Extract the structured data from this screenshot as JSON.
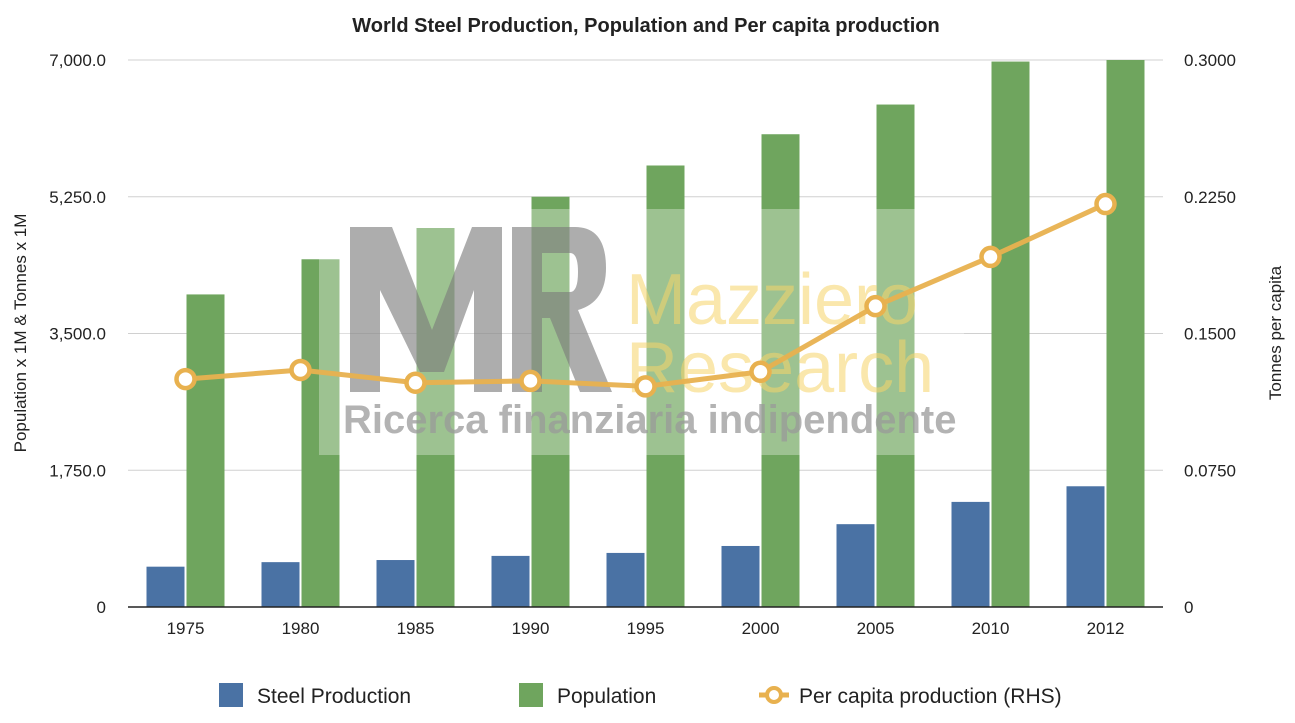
{
  "chart_data": {
    "type": "bar",
    "title": "World Steel Production, Population and Per capita production",
    "categories": [
      "1975",
      "1980",
      "1985",
      "1990",
      "1995",
      "2000",
      "2005",
      "2010",
      "2012"
    ],
    "series": [
      {
        "name": "Steel Production",
        "type": "bar",
        "axis": "left",
        "color": "#4a72a4",
        "values": [
          516,
          574,
          601,
          654,
          692,
          781,
          1060,
          1345,
          1545
        ]
      },
      {
        "name": "Population",
        "type": "bar",
        "axis": "left",
        "color": "#6fa55e",
        "values": [
          4000,
          4450,
          4850,
          5250,
          5650,
          6050,
          6430,
          6980,
          7000
        ]
      },
      {
        "name": "Per capita production (RHS)",
        "type": "line",
        "axis": "right",
        "color": "#e8b14f",
        "values": [
          0.125,
          0.13,
          0.123,
          0.124,
          0.121,
          0.129,
          0.165,
          0.192,
          0.221
        ]
      }
    ],
    "y_left": {
      "label": "Population x 1M & Tonnes x 1M",
      "range": [
        0,
        7000
      ],
      "ticks": [
        0,
        1750,
        3500,
        5250,
        7000
      ],
      "tick_labels": [
        "0",
        "1,750.0",
        "3,500.0",
        "5,250.0",
        "7,000.0"
      ]
    },
    "y_right": {
      "label": "Tonnes per capita",
      "range": [
        0,
        0.3
      ],
      "ticks": [
        0,
        0.075,
        0.15,
        0.225,
        0.3
      ],
      "tick_labels": [
        "0",
        "0.0750",
        "0.1500",
        "0.2250",
        "0.3000"
      ]
    },
    "grid": true,
    "legend": "bottom"
  },
  "watermark": {
    "logo_letters": "MR",
    "line1": "Mazziero",
    "line2": "Research",
    "tagline": "Ricerca finanziaria indipendente"
  }
}
